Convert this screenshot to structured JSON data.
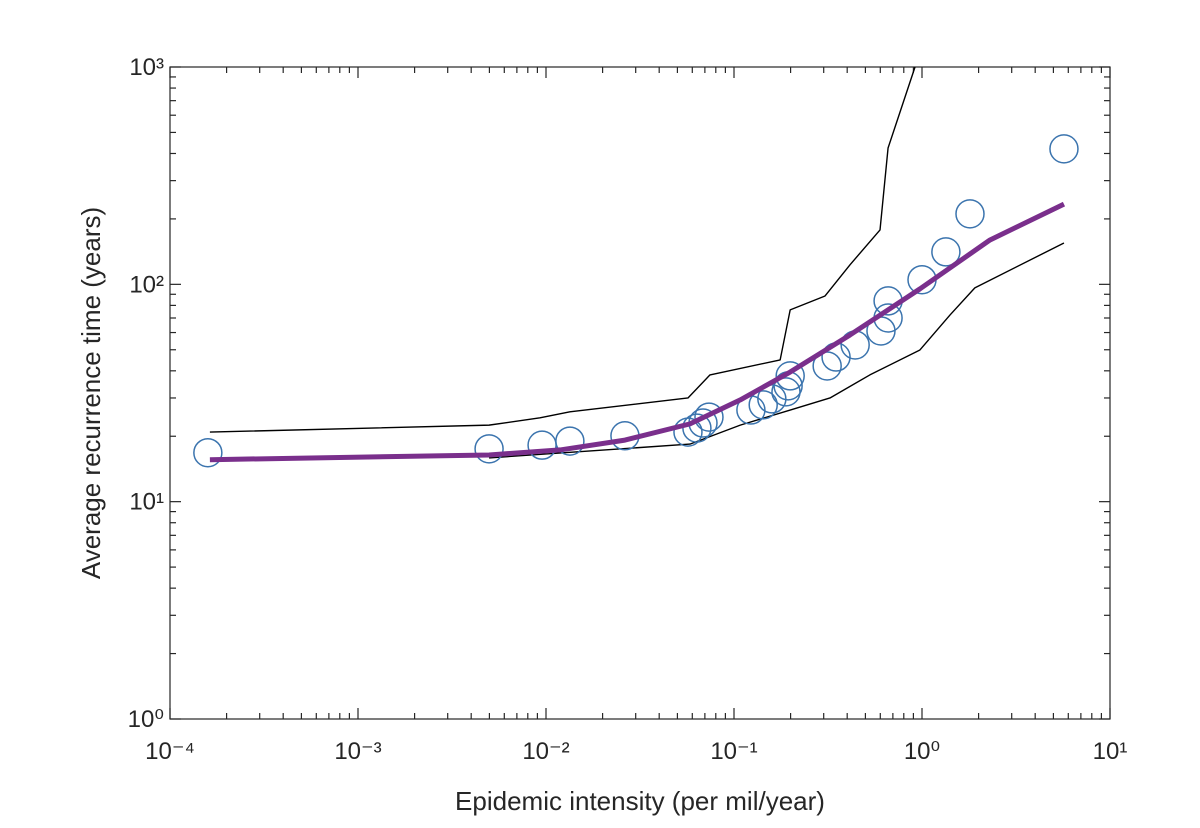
{
  "chart_data": {
    "type": "scatter",
    "xlabel": "Epidemic intensity (per mil/year)",
    "ylabel": "Average recurrence time (years)",
    "xscale": "log",
    "yscale": "log",
    "xlim": [
      0.0001,
      10
    ],
    "ylim": [
      1,
      1000
    ],
    "xticks": [
      {
        "value": 0.0001,
        "label": "10⁻⁴"
      },
      {
        "value": 0.001,
        "label": "10⁻³"
      },
      {
        "value": 0.01,
        "label": "10⁻²"
      },
      {
        "value": 0.1,
        "label": "10⁻¹"
      },
      {
        "value": 1,
        "label": "10⁰"
      },
      {
        "value": 10,
        "label": "10¹"
      }
    ],
    "yticks": [
      {
        "value": 1,
        "label": "10⁰"
      },
      {
        "value": 10,
        "label": "10¹"
      },
      {
        "value": 100,
        "label": "10²"
      },
      {
        "value": 1000,
        "label": "10³"
      }
    ],
    "grid": false,
    "series": [
      {
        "style": "markers",
        "color": "#3b74ae",
        "x": [
          0.000159,
          0.00498,
          0.00953,
          0.0134,
          0.0263,
          0.0569,
          0.0635,
          0.0684,
          0.0736,
          0.123,
          0.143,
          0.159,
          0.189,
          0.194,
          0.199,
          0.313,
          0.349,
          0.441,
          0.605,
          0.66,
          0.66,
          1.0,
          1.34,
          1.8,
          5.69
        ],
        "values": [
          16.8,
          17.5,
          18.2,
          19.0,
          20.1,
          20.9,
          21.8,
          23.0,
          24.5,
          26.4,
          27.9,
          29.7,
          32.0,
          34.1,
          37.9,
          42.1,
          46.3,
          52.6,
          61.0,
          70.0,
          83.9,
          105,
          141,
          211,
          420
        ]
      },
      {
        "style": "line",
        "color": "#7a2f8c",
        "x": [
          0.000163,
          0.00498,
          0.0119,
          0.0263,
          0.0583,
          0.108,
          0.199,
          0.414,
          0.975,
          2.3,
          5.69
        ],
        "values": [
          15.6,
          16.4,
          17.3,
          19.2,
          22.8,
          29.4,
          39.5,
          58.5,
          95.3,
          160,
          234
        ]
      },
      {
        "style": "thin-line",
        "color": "#000000",
        "x": [
          0.000163,
          0.00498,
          0.00929,
          0.0134,
          0.0569,
          0.0745,
          0.176,
          0.199,
          0.305,
          0.414,
          0.598,
          0.66,
          0.918
        ],
        "values": [
          20.9,
          22.5,
          24.3,
          25.9,
          30.0,
          38.3,
          44.9,
          76.3,
          88.4,
          123,
          178,
          424,
          1000
        ]
      },
      {
        "style": "thin-line",
        "color": "#000000",
        "x": [
          0.00498,
          0.0583,
          0.108,
          0.199,
          0.324,
          0.528,
          0.975,
          1.41,
          1.91,
          5.69
        ],
        "values": [
          15.9,
          18.4,
          22.5,
          26.4,
          30.0,
          38.3,
          49.9,
          72.3,
          96.3,
          155
        ]
      }
    ]
  }
}
